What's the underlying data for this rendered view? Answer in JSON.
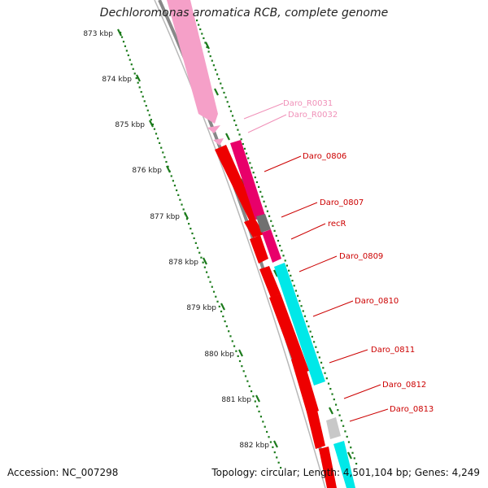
{
  "title": "Dechloromonas aromatica RCB, complete genome",
  "footer": {
    "accession": "Accession: NC_007298",
    "summary": "Topology: circular; Length: 4,501,104 bp; Genes: 4,249"
  },
  "colors": {
    "backbone": "#888888",
    "tick": "#1a7a1a",
    "rrna": "#f5a0c8",
    "cds_forward_strand_a": "#e8006a",
    "cds_reverse": "#ee0000",
    "cds_cyan": "#00e8e8",
    "cds_gray": "#707070",
    "cds_lightgray": "#c8c8c8",
    "label_red": "#cc0000",
    "label_pink": "#f090b8"
  },
  "scale_labels": [
    "873 kbp",
    "874 kbp",
    "875 kbp",
    "876 kbp",
    "877 kbp",
    "878 kbp",
    "879 kbp",
    "880 kbp",
    "881 kbp",
    "882 kbp"
  ],
  "gene_labels": [
    {
      "text": "Daro_R0031",
      "color": "pink"
    },
    {
      "text": "Daro_R0032",
      "color": "pink"
    },
    {
      "text": "Daro_0806",
      "color": "red"
    },
    {
      "text": "Daro_0807",
      "color": "red"
    },
    {
      "text": "recR",
      "color": "red"
    },
    {
      "text": "Daro_0809",
      "color": "red"
    },
    {
      "text": "Daro_0810",
      "color": "red"
    },
    {
      "text": "Daro_0811",
      "color": "red"
    },
    {
      "text": "Daro_0812",
      "color": "red"
    },
    {
      "text": "Daro_0813",
      "color": "red"
    }
  ]
}
